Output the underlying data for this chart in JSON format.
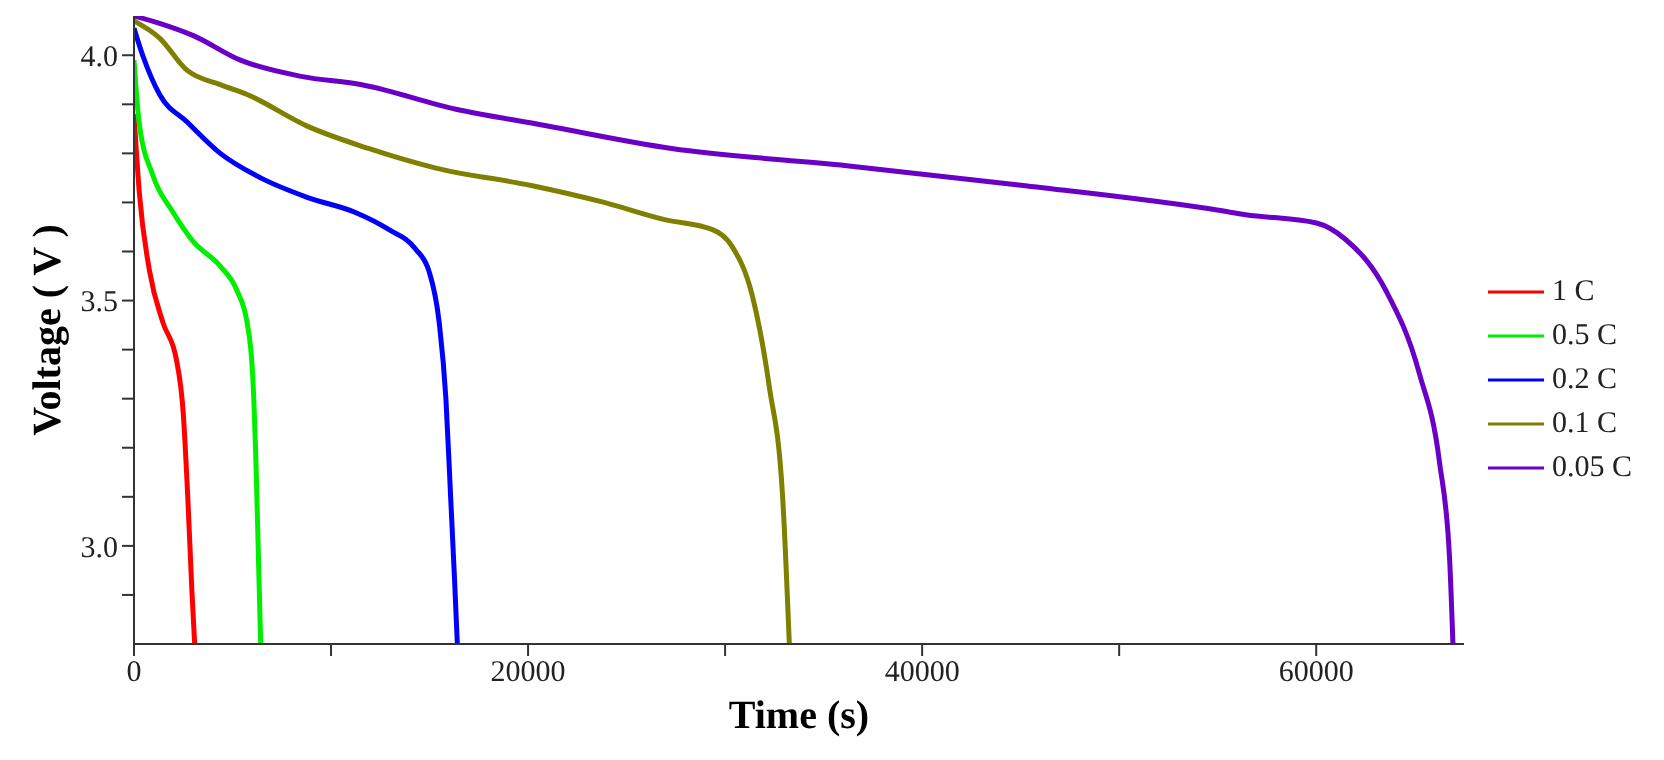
{
  "chart_data": {
    "type": "line",
    "xlabel": "Time (s)",
    "ylabel": "Voltage ( V )",
    "xlim": [
      0,
      67500
    ],
    "ylim": [
      2.8,
      4.08
    ],
    "xticks": [
      0,
      {
        "value": 10000,
        "label": null
      },
      20000,
      {
        "value": 30000,
        "label": null
      },
      40000,
      {
        "value": 50000,
        "label": null
      },
      60000
    ],
    "yticks": [
      {
        "value": 2.9,
        "label": null
      },
      {
        "value": 3,
        "label": "3.0"
      },
      {
        "value": 3.1,
        "label": null
      },
      {
        "value": 3.2,
        "label": null
      },
      {
        "value": 3.3,
        "label": null
      },
      {
        "value": 3.4,
        "label": null
      },
      3.5,
      {
        "value": 3.6,
        "label": null
      },
      {
        "value": 3.7,
        "label": null
      },
      {
        "value": 3.8,
        "label": null
      },
      {
        "value": 3.9,
        "label": null
      },
      {
        "value": 4,
        "label": "4.0"
      }
    ],
    "grid": false,
    "legend": "right",
    "marker": "none",
    "line_style": "solid",
    "series": [
      {
        "name": "1 C",
        "color": "#ff0000",
        "x": [
          0,
          270,
          790,
          1470,
          2150,
          2500,
          2740,
          2940,
          3080
        ],
        "values": [
          3.88,
          3.72,
          3.56,
          3.455,
          3.38,
          3.27,
          3.09,
          2.907,
          2.8
        ]
      },
      {
        "name": "0.5 C",
        "color": "#00ee00",
        "x": [
          0,
          270,
          960,
          1980,
          3010,
          4380,
          5230,
          5740,
          6020,
          6190,
          6320,
          6430
        ],
        "values": [
          3.99,
          3.86,
          3.755,
          3.68,
          3.62,
          3.57,
          3.52,
          3.455,
          3.35,
          3.17,
          2.97,
          2.8
        ]
      },
      {
        "name": "0.2 C",
        "color": "#0000ff",
        "x": [
          0,
          440,
          1300,
          2670,
          4380,
          6430,
          8820,
          11210,
          12920,
          14290,
          14970,
          15490,
          15830,
          16070,
          16270,
          16410
        ],
        "values": [
          4.055,
          4.0,
          3.92,
          3.865,
          3.8,
          3.75,
          3.71,
          3.68,
          3.645,
          3.605,
          3.56,
          3.455,
          3.3,
          3.1,
          2.93,
          2.8
        ]
      },
      {
        "name": "0.1 C",
        "color": "#808000",
        "x": [
          0,
          1300,
          2670,
          4380,
          5740,
          8820,
          11900,
          15320,
          20100,
          23860,
          26940,
          29330,
          30360,
          31380,
          32240,
          32920,
          33260
        ],
        "values": [
          4.07,
          4.035,
          3.97,
          3.94,
          3.92,
          3.855,
          3.81,
          3.77,
          3.735,
          3.7,
          3.665,
          3.645,
          3.61,
          3.51,
          3.325,
          3.1,
          2.8
        ]
      },
      {
        "name": "0.05 C",
        "color": "#6a00c8",
        "x": [
          0,
          1300,
          3010,
          5400,
          8480,
          11560,
          16340,
          20440,
          27280,
          36170,
          44790,
          55050,
          56420,
          60010,
          61480,
          63530,
          65230,
          66260,
          66770,
          66940
        ],
        "values": [
          4.08,
          4.065,
          4.04,
          3.99,
          3.957,
          3.94,
          3.89,
          3.86,
          3.81,
          3.775,
          3.736,
          3.684,
          3.675,
          3.658,
          3.625,
          3.521,
          3.352,
          3.17,
          2.974,
          2.8
        ]
      }
    ]
  }
}
